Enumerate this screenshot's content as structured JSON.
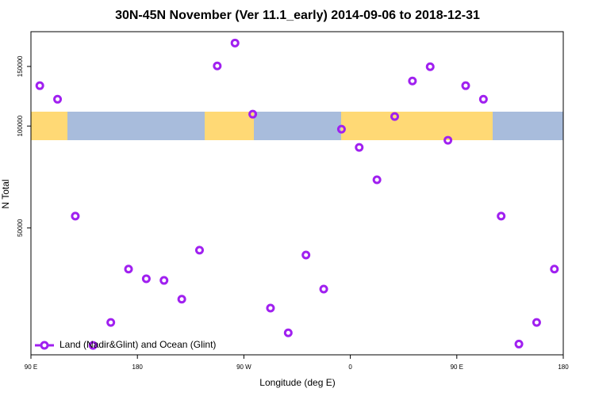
{
  "chart_data": {
    "type": "scatter",
    "title": "30N-45N November (Ver 11.1_early)   2014-09-06 to 2018-12-31",
    "x_label": "Longitude (deg E)",
    "y_label": "N Total",
    "x": [
      97.5,
      112.5,
      127.5,
      142.5,
      157.5,
      172.5,
      187.5,
      202.5,
      217.5,
      232.5,
      247.5,
      262.5,
      277.5,
      292.5,
      307.5,
      322.5,
      337.5,
      352.5,
      367.5,
      382.5,
      397.5,
      412.5,
      427.5,
      442.5,
      457.5,
      472.5,
      487.5,
      502.5,
      517.5,
      532.5
    ],
    "series": [
      {
        "name": "Land (Nadir&Glint) and Ocean (Glint)",
        "color": "#a020f0",
        "values": [
          131600,
          120000,
          54200,
          22500,
          26300,
          37800,
          35400,
          35000,
          30800,
          43000,
          150500,
          175900,
          108400,
          29000,
          24500,
          41600,
          33000,
          97900,
          86500,
          69400,
          106700,
          135900,
          149700,
          90800,
          131600,
          120000,
          54200,
          22700,
          26300,
          37800
        ]
      }
    ],
    "xlim": [
      90,
      540
    ],
    "xticks": [
      {
        "value": 90,
        "label": "90 E"
      },
      180,
      {
        "value": 270,
        "label": "90 W"
      },
      {
        "value": 360,
        "label": "0"
      },
      {
        "value": 450,
        "label": "90 E"
      },
      {
        "value": 540,
        "label": "180"
      }
    ],
    "ylim": [
      21100,
      190000
    ],
    "log_y": true,
    "yticks": [
      50000,
      100000,
      150000
    ],
    "legend": "bottom-left"
  }
}
